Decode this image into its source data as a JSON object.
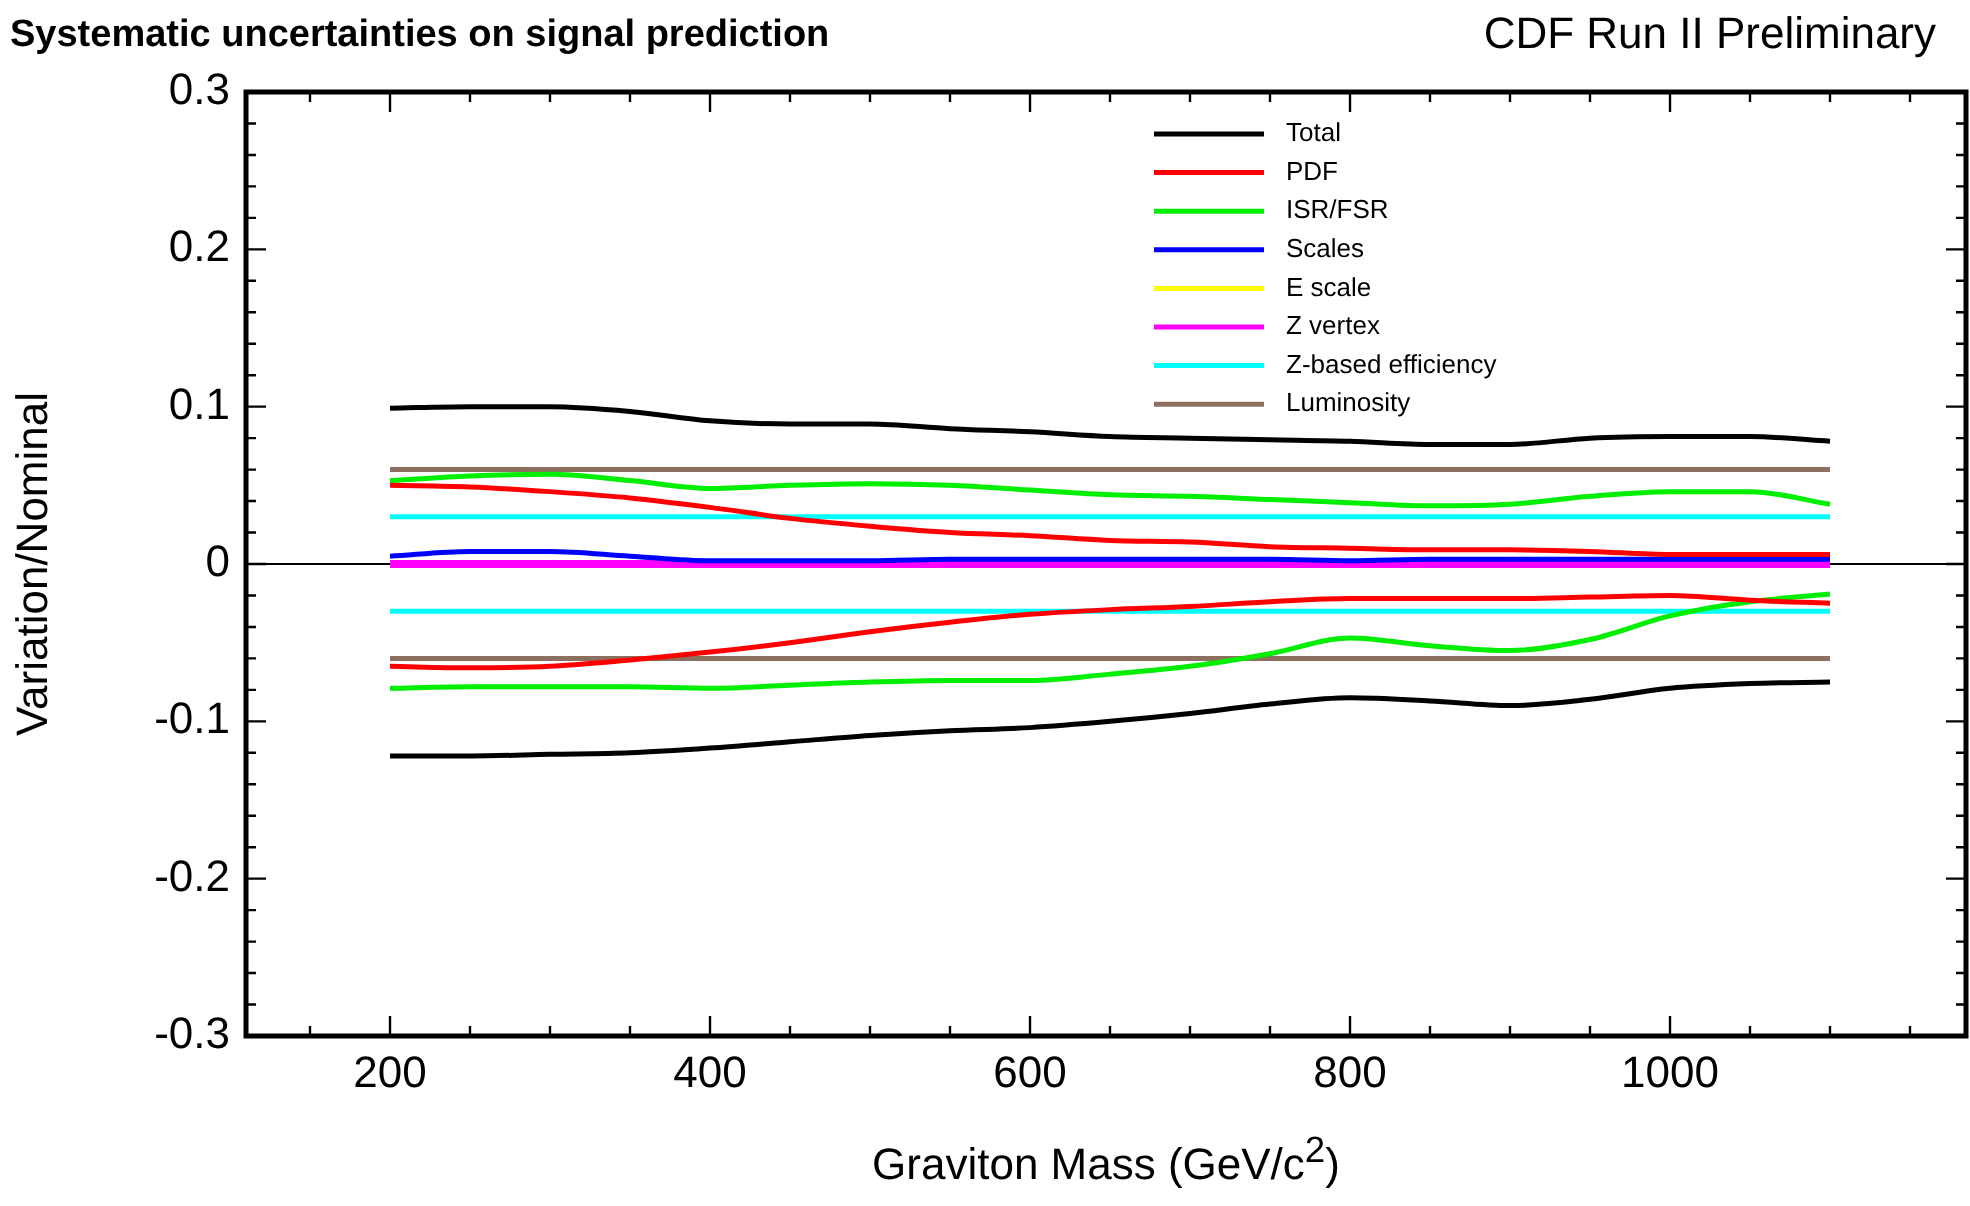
{
  "chart_data": {
    "type": "line",
    "title": "Systematic uncertainties on signal prediction",
    "subtitle": "CDF Run II Preliminary",
    "xlabel": "Graviton Mass (GeV/c$^{2}$)",
    "ylabel": "Variation/Nominal",
    "x": [
      200,
      250,
      300,
      350,
      400,
      450,
      500,
      550,
      600,
      650,
      700,
      750,
      800,
      850,
      900,
      950,
      1000,
      1050,
      1100
    ],
    "series": [
      {
        "name": "Total",
        "color": "#000000",
        "values": [
          0.099,
          0.1,
          0.1,
          0.097,
          0.091,
          0.089,
          0.089,
          0.086,
          0.084,
          0.081,
          0.08,
          0.079,
          0.078,
          0.076,
          0.076,
          0.08,
          0.081,
          0.081,
          0.078
        ]
      },
      {
        "color": "#000000",
        "values": [
          -0.122,
          -0.122,
          -0.121,
          -0.12,
          -0.117,
          -0.113,
          -0.109,
          -0.106,
          -0.104,
          -0.1,
          -0.095,
          -0.089,
          -0.085,
          -0.087,
          -0.09,
          -0.086,
          -0.079,
          -0.076,
          -0.075
        ]
      },
      {
        "name": "PDF",
        "color": "#ff0000",
        "values": [
          0.05,
          0.049,
          0.046,
          0.042,
          0.036,
          0.029,
          0.024,
          0.02,
          0.018,
          0.015,
          0.014,
          0.011,
          0.01,
          0.009,
          0.009,
          0.008,
          0.006,
          0.006,
          0.006
        ]
      },
      {
        "color": "#ff0000",
        "values": [
          -0.065,
          -0.066,
          -0.065,
          -0.061,
          -0.056,
          -0.05,
          -0.043,
          -0.037,
          -0.032,
          -0.029,
          -0.027,
          -0.024,
          -0.022,
          -0.022,
          -0.022,
          -0.021,
          -0.02,
          -0.023,
          -0.025
        ]
      },
      {
        "name": "ISR/FSR",
        "color": "#00ee00",
        "values": [
          0.053,
          0.056,
          0.057,
          0.053,
          0.048,
          0.05,
          0.051,
          0.05,
          0.047,
          0.044,
          0.043,
          0.041,
          0.039,
          0.037,
          0.038,
          0.043,
          0.046,
          0.046,
          0.038
        ]
      },
      {
        "color": "#00ee00",
        "values": [
          -0.079,
          -0.078,
          -0.078,
          -0.078,
          -0.079,
          -0.077,
          -0.075,
          -0.074,
          -0.074,
          -0.07,
          -0.065,
          -0.057,
          -0.047,
          -0.052,
          -0.055,
          -0.048,
          -0.033,
          -0.024,
          -0.019
        ]
      },
      {
        "name": "Scales",
        "color": "#0000ff",
        "values": [
          0.005,
          0.008,
          0.008,
          0.005,
          0.002,
          0.002,
          0.002,
          0.003,
          0.003,
          0.003,
          0.003,
          0.003,
          0.002,
          0.003,
          0.003,
          0.003,
          0.003,
          0.003,
          0.003
        ]
      },
      {
        "name": "E scale",
        "color": "#ffff00",
        "values": [
          null,
          null,
          null,
          null,
          null,
          null,
          null,
          null,
          null,
          null,
          null,
          null,
          null,
          null,
          null,
          null,
          null,
          null,
          null
        ]
      },
      {
        "name": "Z vertex",
        "color": "#ff00ff",
        "values": [
          0,
          0,
          0,
          0,
          0,
          0,
          0,
          0,
          0,
          0,
          0,
          0,
          0,
          0,
          0,
          0,
          0,
          0,
          0
        ]
      },
      {
        "name": "Z-based efficiency",
        "color": "#00ffff",
        "values": [
          0.03,
          0.03,
          0.03,
          0.03,
          0.03,
          0.03,
          0.03,
          0.03,
          0.03,
          0.03,
          0.03,
          0.03,
          0.03,
          0.03,
          0.03,
          0.03,
          0.03,
          0.03,
          0.03
        ]
      },
      {
        "color": "#00ffff",
        "values": [
          -0.03,
          -0.03,
          -0.03,
          -0.03,
          -0.03,
          -0.03,
          -0.03,
          -0.03,
          -0.03,
          -0.03,
          -0.03,
          -0.03,
          -0.03,
          -0.03,
          -0.03,
          -0.03,
          -0.03,
          -0.03,
          -0.03
        ]
      },
      {
        "name": "Luminosity",
        "color": "#8b7060",
        "values": [
          0.06,
          0.06,
          0.06,
          0.06,
          0.06,
          0.06,
          0.06,
          0.06,
          0.06,
          0.06,
          0.06,
          0.06,
          0.06,
          0.06,
          0.06,
          0.06,
          0.06,
          0.06,
          0.06
        ]
      },
      {
        "color": "#8b7060",
        "values": [
          -0.06,
          -0.06,
          -0.06,
          -0.06,
          -0.06,
          -0.06,
          -0.06,
          -0.06,
          -0.06,
          -0.06,
          -0.06,
          -0.06,
          -0.06,
          -0.06,
          -0.06,
          -0.06,
          -0.06,
          -0.06,
          -0.06
        ]
      }
    ],
    "xlim": [
      110,
      1185
    ],
    "xticks": [
      {
        "value": 150,
        "label": null
      },
      200,
      {
        "value": 250,
        "label": null
      },
      {
        "value": 300,
        "label": null
      },
      {
        "value": 350,
        "label": null
      },
      400,
      {
        "value": 450,
        "label": null
      },
      {
        "value": 500,
        "label": null
      },
      {
        "value": 550,
        "label": null
      },
      600,
      {
        "value": 650,
        "label": null
      },
      {
        "value": 700,
        "label": null
      },
      {
        "value": 750,
        "label": null
      },
      800,
      {
        "value": 850,
        "label": null
      },
      {
        "value": 900,
        "label": null
      },
      {
        "value": 950,
        "label": null
      },
      1000,
      {
        "value": 1050,
        "label": null
      },
      {
        "value": 1100,
        "label": null
      },
      {
        "value": 1150,
        "label": null
      }
    ],
    "ylim": [
      -0.3,
      0.3
    ],
    "yticks": [
      -0.3,
      {
        "value": -0.28,
        "label": null
      },
      {
        "value": -0.26,
        "label": null
      },
      {
        "value": -0.24,
        "label": null
      },
      {
        "value": -0.22,
        "label": null
      },
      -0.2,
      {
        "value": -0.18,
        "label": null
      },
      {
        "value": -0.16,
        "label": null
      },
      {
        "value": -0.14,
        "label": null
      },
      {
        "value": -0.12,
        "label": null
      },
      -0.1,
      {
        "value": -0.08,
        "label": null
      },
      {
        "value": -0.06,
        "label": null
      },
      {
        "value": -0.04,
        "label": null
      },
      {
        "value": -0.02,
        "label": null
      },
      0,
      {
        "value": 0.02,
        "label": null
      },
      {
        "value": 0.04,
        "label": null
      },
      {
        "value": 0.06,
        "label": null
      },
      {
        "value": 0.08,
        "label": null
      },
      0.1,
      {
        "value": 0.12,
        "label": null
      },
      {
        "value": 0.14,
        "label": null
      },
      {
        "value": 0.16,
        "label": null
      },
      {
        "value": 0.18,
        "label": null
      },
      0.2,
      {
        "value": 0.22,
        "label": null
      },
      {
        "value": 0.24,
        "label": null
      },
      {
        "value": 0.26,
        "label": null
      },
      {
        "value": 0.28,
        "label": null
      },
      0.3
    ],
    "ref_lines": [
      {
        "axis": "y",
        "value": 0,
        "color": "#000000"
      }
    ],
    "grid": false,
    "legend": "top right",
    "marker": "none",
    "line_style": "solid"
  }
}
